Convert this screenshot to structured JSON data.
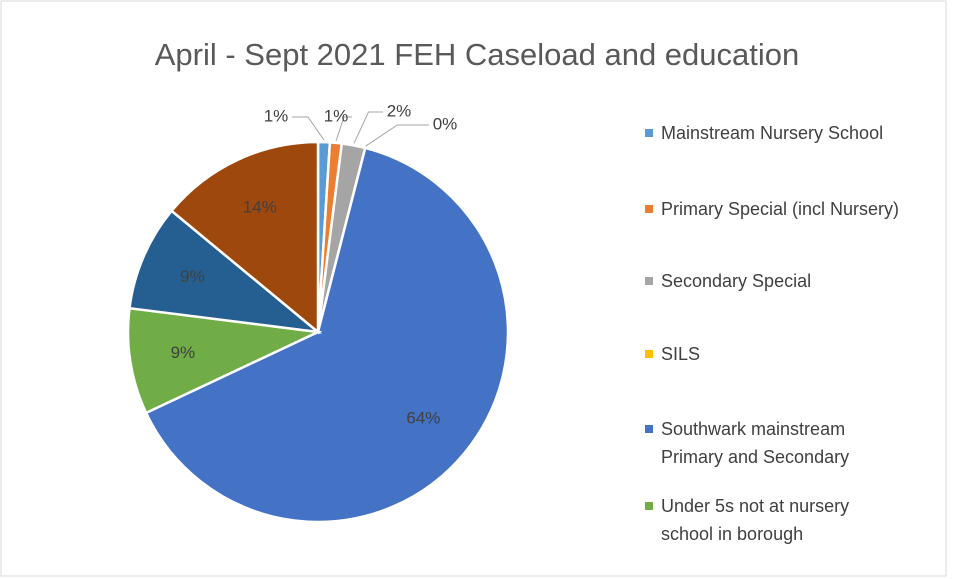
{
  "chart_data": {
    "type": "pie",
    "title": "April - Sept 2021 FEH Caseload and education",
    "categories": [
      "Mainstream Nursery School",
      "Primary Special (incl Nursery)",
      "Secondary Special",
      "SILS",
      "Southwark mainstream Primary and Secondary",
      "Under 5s not at nursery school in borough",
      null,
      null
    ],
    "values": [
      1,
      1,
      2,
      0,
      64,
      9,
      9,
      14
    ],
    "value_labels": [
      "1%",
      "1%",
      "2%",
      "0%",
      "64%",
      "9%",
      "9%",
      "14%"
    ],
    "colors": [
      "#5b9bd5",
      "#ed7d31",
      "#a5a5a5",
      "#ffc000",
      "#4472c4",
      "#70ad47",
      "#255e91",
      "#9e480e"
    ]
  }
}
